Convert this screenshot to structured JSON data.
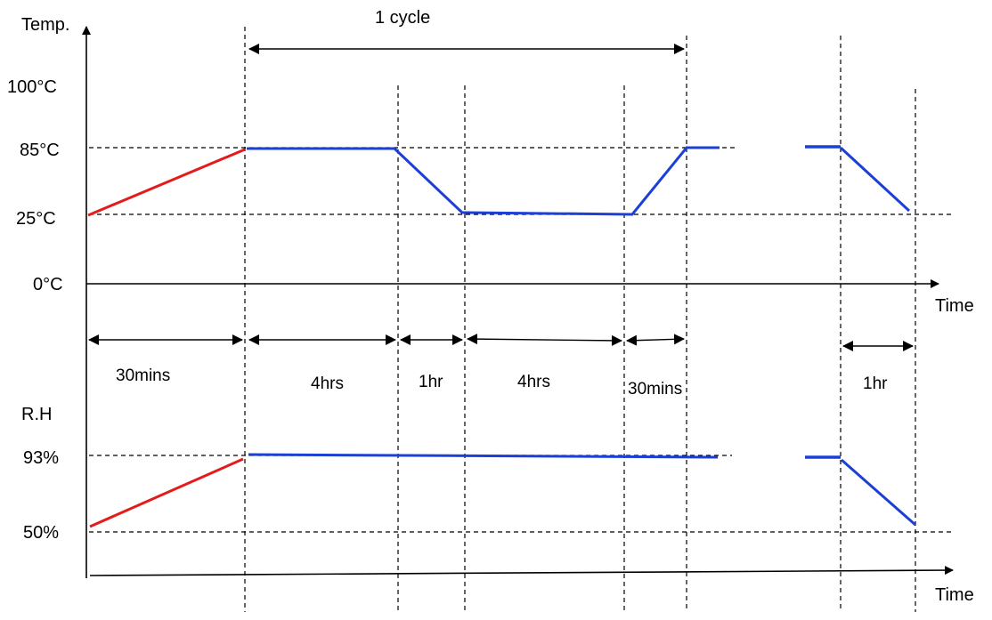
{
  "temp_axis": {
    "label": "Temp.",
    "ticks": [
      "100°C",
      "85°C",
      "25°C",
      "0°C"
    ],
    "x_label": "Time"
  },
  "cycle_label": "1 cycle",
  "durations": [
    "30mins",
    "4hrs",
    "1hr",
    "4hrs",
    "30mins",
    "1hr"
  ],
  "rh_axis": {
    "label": "R.H",
    "ticks": [
      "93%",
      "50%"
    ],
    "x_label": "Time"
  },
  "colors": {
    "ramp": "#e31b1b",
    "profile": "#1c3fd6",
    "axis": "#000000"
  }
}
